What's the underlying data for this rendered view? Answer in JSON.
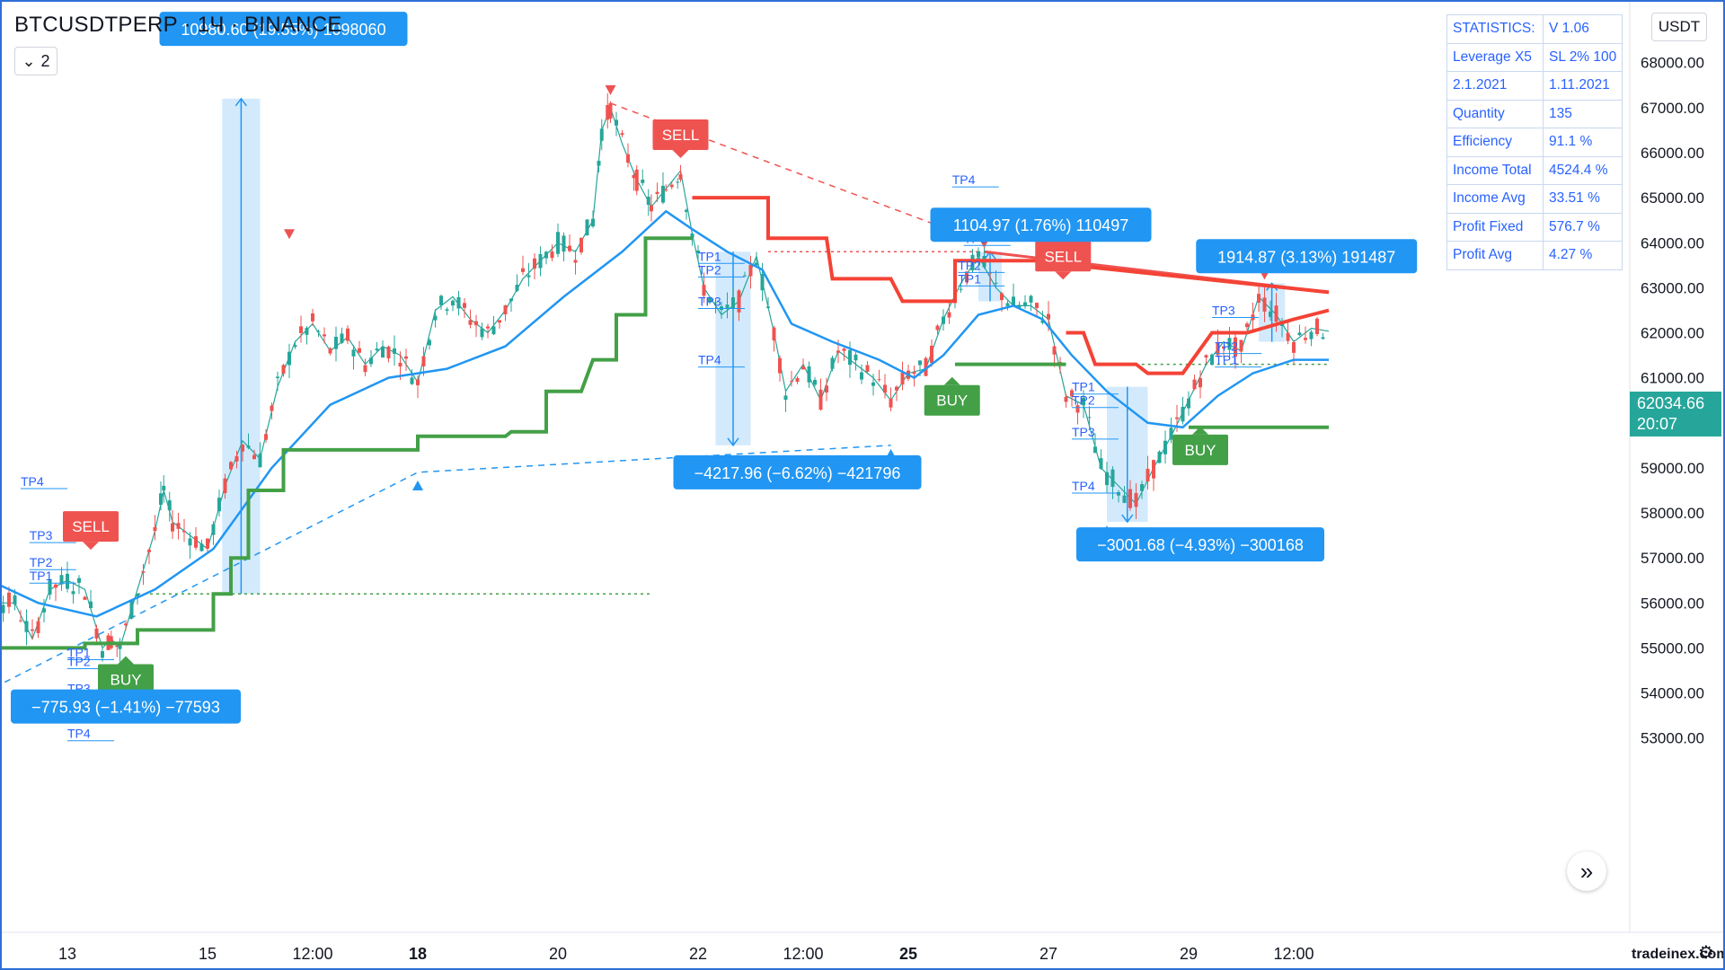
{
  "header": {
    "symbol": "BTCUSDTPERP · 1Ч · BINANCE",
    "collapse_label": "2"
  },
  "currency": "USDT",
  "stats": [
    [
      "STATISTICS:",
      "V 1.06"
    ],
    [
      "Leverage X5",
      "SL 2% 100"
    ],
    [
      "2.1.2021",
      "1.11.2021"
    ],
    [
      "Quantity",
      "135"
    ],
    [
      "Efficiency",
      "91.1 %"
    ],
    [
      "Income Total",
      "4524.4 %"
    ],
    [
      "Income Avg",
      "33.51 %"
    ],
    [
      "Profit Fixed",
      "576.7 %"
    ],
    [
      "Profit Avg",
      "4.27 %"
    ]
  ],
  "price_badge": {
    "price": "62034.66",
    "countdown": "20:07"
  },
  "watermark": "tradeinex.com",
  "colors": {
    "up": "#26a69a",
    "down": "#ef5350",
    "ma": "#2196f3",
    "stop_up": "#43a047",
    "stop_down": "#f44336",
    "label": "#2196f3"
  },
  "chart_data": {
    "type": "candlestick",
    "symbol": "BTCUSDTPERP",
    "timeframe": "1Ч",
    "exchange": "BINANCE",
    "ylim": [
      52400,
      69500
    ],
    "y_ticks": [
      53000,
      54000,
      55000,
      56000,
      57000,
      58000,
      59000,
      60000,
      61000,
      62000,
      63000,
      64000,
      65000,
      66000,
      67000,
      68000
    ],
    "y_tick_labels": [
      "53000.00",
      "54000.00",
      "55000.00",
      "56000.00",
      "57000.00",
      "58000.00",
      "59000.00",
      "60000.00",
      "61000.00",
      "62000.00",
      "63000.00",
      "64000.00",
      "65000.00",
      "66000.00",
      "67000.00",
      "68000.00"
    ],
    "x_range_hours": [
      -50,
      700
    ],
    "x_ticks": [
      {
        "hour": 0,
        "label": "13"
      },
      {
        "hour": 48,
        "label": "15"
      },
      {
        "hour": 84,
        "label": "12:00"
      },
      {
        "hour": 120,
        "label": "18",
        "bold": true
      },
      {
        "hour": 168,
        "label": "20"
      },
      {
        "hour": 216,
        "label": "22"
      },
      {
        "hour": 252,
        "label": "12:00"
      },
      {
        "hour": 288,
        "label": "25",
        "bold": true
      },
      {
        "hour": 336,
        "label": "27"
      },
      {
        "hour": 384,
        "label": "29"
      },
      {
        "hour": 420,
        "label": "12:00"
      }
    ],
    "last_price": 62034.66,
    "price_path": [
      [
        -50,
        59500
      ],
      [
        -36,
        57000
      ],
      [
        -30,
        56600
      ],
      [
        -24,
        56000
      ],
      [
        -18,
        56000
      ],
      [
        -12,
        55200
      ],
      [
        -6,
        56300
      ],
      [
        0,
        56500
      ],
      [
        6,
        56300
      ],
      [
        12,
        55000
      ],
      [
        15,
        55200
      ],
      [
        18,
        55000
      ],
      [
        24,
        56300
      ],
      [
        30,
        57600
      ],
      [
        33,
        58500
      ],
      [
        36,
        57800
      ],
      [
        42,
        57500
      ],
      [
        48,
        57200
      ],
      [
        54,
        58600
      ],
      [
        60,
        59600
      ],
      [
        66,
        59200
      ],
      [
        72,
        60800
      ],
      [
        78,
        61800
      ],
      [
        84,
        62200
      ],
      [
        90,
        61600
      ],
      [
        96,
        61900
      ],
      [
        102,
        61300
      ],
      [
        108,
        61700
      ],
      [
        114,
        61500
      ],
      [
        120,
        60900
      ],
      [
        126,
        62500
      ],
      [
        132,
        62800
      ],
      [
        138,
        62300
      ],
      [
        144,
        62000
      ],
      [
        150,
        62500
      ],
      [
        156,
        63200
      ],
      [
        162,
        63600
      ],
      [
        168,
        64000
      ],
      [
        174,
        63800
      ],
      [
        180,
        64500
      ],
      [
        183,
        66500
      ],
      [
        186,
        67000
      ],
      [
        190,
        66200
      ],
      [
        195,
        65400
      ],
      [
        200,
        64800
      ],
      [
        205,
        65200
      ],
      [
        210,
        65600
      ],
      [
        214,
        64200
      ],
      [
        218,
        63000
      ],
      [
        224,
        62400
      ],
      [
        230,
        62700
      ],
      [
        236,
        63700
      ],
      [
        242,
        62000
      ],
      [
        246,
        60700
      ],
      [
        252,
        61300
      ],
      [
        258,
        60500
      ],
      [
        264,
        61600
      ],
      [
        270,
        61300
      ],
      [
        276,
        61000
      ],
      [
        282,
        60500
      ],
      [
        288,
        61100
      ],
      [
        294,
        61200
      ],
      [
        300,
        62300
      ],
      [
        306,
        63100
      ],
      [
        312,
        63700
      ],
      [
        318,
        63000
      ],
      [
        324,
        62600
      ],
      [
        330,
        62600
      ],
      [
        336,
        62300
      ],
      [
        342,
        60600
      ],
      [
        348,
        60400
      ],
      [
        354,
        59000
      ],
      [
        360,
        58600
      ],
      [
        366,
        58200
      ],
      [
        372,
        59000
      ],
      [
        378,
        59700
      ],
      [
        384,
        60500
      ],
      [
        390,
        61300
      ],
      [
        396,
        61800
      ],
      [
        402,
        61600
      ],
      [
        408,
        62800
      ],
      [
        414,
        62400
      ],
      [
        420,
        61800
      ],
      [
        426,
        62100
      ],
      [
        432,
        62034
      ]
    ],
    "series": [
      {
        "name": "",
        "color": "#2196f3",
        "points": [
          [
            -50,
            56300
          ],
          [
            -30,
            56600
          ],
          [
            -10,
            56000
          ],
          [
            10,
            55700
          ],
          [
            30,
            56300
          ],
          [
            50,
            57200
          ],
          [
            70,
            59000
          ],
          [
            90,
            60400
          ],
          [
            110,
            61000
          ],
          [
            130,
            61200
          ],
          [
            150,
            61700
          ],
          [
            170,
            62800
          ],
          [
            190,
            63800
          ],
          [
            205,
            64700
          ],
          [
            214,
            64300
          ],
          [
            226,
            63800
          ],
          [
            238,
            63400
          ],
          [
            248,
            62200
          ],
          [
            262,
            61800
          ],
          [
            278,
            61400
          ],
          [
            290,
            61000
          ],
          [
            300,
            61500
          ],
          [
            312,
            62400
          ],
          [
            324,
            62600
          ],
          [
            334,
            62300
          ],
          [
            344,
            61500
          ],
          [
            356,
            60700
          ],
          [
            370,
            60000
          ],
          [
            382,
            59900
          ],
          [
            394,
            60600
          ],
          [
            406,
            61100
          ],
          [
            420,
            61400
          ],
          [
            432,
            61400
          ]
        ]
      },
      {
        "name": "",
        "color": "#43a047",
        "steps": [
          [
            -50,
            55000
          ],
          [
            6,
            55000
          ],
          [
            6,
            55100
          ],
          [
            24,
            55100
          ],
          [
            24,
            55400
          ],
          [
            50,
            55400
          ],
          [
            50,
            56200
          ],
          [
            56,
            56200
          ],
          [
            56,
            57000
          ],
          [
            62,
            57000
          ],
          [
            62,
            58500
          ],
          [
            74,
            58500
          ],
          [
            74,
            59400
          ],
          [
            120,
            59400
          ],
          [
            120,
            59700
          ],
          [
            150,
            59700
          ],
          [
            152,
            59800
          ],
          [
            164,
            59800
          ],
          [
            164,
            60700
          ],
          [
            176,
            60700
          ],
          [
            180,
            61400
          ],
          [
            188,
            61400
          ],
          [
            188,
            62400
          ],
          [
            198,
            62400
          ],
          [
            198,
            64100
          ],
          [
            214,
            64100
          ]
        ]
      },
      {
        "name": "",
        "color": "#f44336",
        "steps": [
          [
            214,
            65000
          ],
          [
            240,
            65000
          ],
          [
            240,
            64100
          ],
          [
            260,
            64100
          ],
          [
            262,
            63200
          ],
          [
            282,
            63200
          ],
          [
            286,
            62700
          ],
          [
            304,
            62700
          ],
          [
            304,
            63600
          ],
          [
            344,
            63600
          ],
          [
            344,
            63500
          ],
          [
            432,
            62900
          ]
        ]
      },
      {
        "name": "",
        "color": "#43a047",
        "steps": [
          [
            304,
            61300
          ],
          [
            342,
            61300
          ]
        ]
      },
      {
        "name": "",
        "color": "#f44336",
        "steps": [
          [
            342,
            62000
          ],
          [
            348,
            62000
          ],
          [
            352,
            61300
          ],
          [
            366,
            61300
          ],
          [
            370,
            61100
          ],
          [
            382,
            61100
          ],
          [
            392,
            62000
          ],
          [
            404,
            62000
          ],
          [
            420,
            62300
          ],
          [
            432,
            62500
          ]
        ]
      },
      {
        "name": "",
        "color": "#43a047",
        "steps": [
          [
            384,
            59900
          ],
          [
            432,
            59900
          ]
        ]
      }
    ],
    "signals": [
      {
        "label": "SELL",
        "hour": 8,
        "price": 57700,
        "color": "#ef5350"
      },
      {
        "label": "BUY",
        "hour": 20,
        "price": 54300,
        "color": "#43a047"
      },
      {
        "label": "SELL",
        "hour": 210,
        "price": 66400,
        "color": "#ef5350"
      },
      {
        "label": "BUY",
        "hour": 303,
        "price": 60500,
        "color": "#43a047"
      },
      {
        "label": "SELL",
        "hour": 341,
        "price": 63700,
        "color": "#ef5350"
      },
      {
        "label": "BUY",
        "hour": 388,
        "price": 59400,
        "color": "#43a047"
      }
    ],
    "measure_boxes": [
      {
        "h0": 53,
        "h1": 66,
        "p0": 56200,
        "p1": 67200,
        "label": "10980.60 (19.55%) 1098060",
        "dir": "up",
        "label_hour": 50,
        "label_price": 68750
      },
      {
        "h0": 222,
        "h1": 234,
        "p0": 59500,
        "p1": 63800,
        "label": "−4217.96 (−6.62%) −421796",
        "dir": "down",
        "label_hour": 226,
        "label_price": 58900
      },
      {
        "h0": 312,
        "h1": 320,
        "p0": 62700,
        "p1": 63800,
        "label": "1104.97 (1.76%) 110497",
        "dir": "up",
        "label_hour": 314,
        "label_price": 64400
      },
      {
        "h0": 356,
        "h1": 370,
        "p0": 57800,
        "p1": 60800,
        "label": "−3001.68 (−4.93%) −300168",
        "dir": "down",
        "label_hour": 364,
        "label_price": 57300
      },
      {
        "h0": 408,
        "h1": 417,
        "p0": 61800,
        "p1": 63100,
        "label": "1914.87 (3.13%) 191487",
        "dir": "up",
        "label_hour": 405,
        "label_price": 63700
      }
    ],
    "other_labels": [
      {
        "label": "−775.93 (−1.41%) −77593",
        "hour": -2,
        "price": 53700
      }
    ],
    "tp_labels": [
      {
        "label": "TP4",
        "hour": -16,
        "price": 58600
      },
      {
        "label": "TP3",
        "hour": -13,
        "price": 57400
      },
      {
        "label": "TP2",
        "hour": -13,
        "price": 56800
      },
      {
        "label": "TP1",
        "hour": -13,
        "price": 56500
      },
      {
        "label": "TP1",
        "hour": 0,
        "price": 54800
      },
      {
        "label": "TP2",
        "hour": 0,
        "price": 54600
      },
      {
        "label": "TP3",
        "hour": 0,
        "price": 54000
      },
      {
        "label": "TP4",
        "hour": 0,
        "price": 53000
      },
      {
        "label": "TP1",
        "hour": 216,
        "price": 63600
      },
      {
        "label": "TP2",
        "hour": 216,
        "price": 63300
      },
      {
        "label": "TP3",
        "hour": 216,
        "price": 62600
      },
      {
        "label": "TP4",
        "hour": 216,
        "price": 61300
      },
      {
        "label": "TP2",
        "hour": 305,
        "price": 63400
      },
      {
        "label": "TP1",
        "hour": 305,
        "price": 63100
      },
      {
        "label": "TP3",
        "hour": 307,
        "price": 64000
      },
      {
        "label": "TP4",
        "hour": 303,
        "price": 65300
      },
      {
        "label": "TP1",
        "hour": 344,
        "price": 60700
      },
      {
        "label": "TP2",
        "hour": 344,
        "price": 60400
      },
      {
        "label": "TP3",
        "hour": 344,
        "price": 59700
      },
      {
        "label": "TP4",
        "hour": 344,
        "price": 58500
      },
      {
        "label": "TP3",
        "hour": 392,
        "price": 62400
      },
      {
        "label": "TP2",
        "hour": 393,
        "price": 61600
      },
      {
        "label": "TP1",
        "hour": 393,
        "price": 61300
      }
    ],
    "triangles": [
      {
        "hour": 76,
        "price": 64200,
        "dir": "down",
        "color": "#ef5350"
      },
      {
        "hour": 186,
        "price": 67400,
        "dir": "down",
        "color": "#ef5350"
      },
      {
        "hour": 120,
        "price": 58600,
        "dir": "up",
        "color": "#2196f3"
      },
      {
        "hour": 282,
        "price": 59300,
        "dir": "up",
        "color": "#2196f3"
      },
      {
        "hour": 356,
        "price": 57600,
        "dir": "up",
        "color": "#2196f3"
      },
      {
        "hour": 314,
        "price": 64000,
        "dir": "down",
        "color": "#ef5350"
      },
      {
        "hour": 410,
        "price": 63300,
        "dir": "down",
        "color": "#ef5350"
      }
    ],
    "trend_lines": [
      {
        "color": "#2196f3",
        "dash": true,
        "points": [
          [
            -50,
            53300
          ],
          [
            120,
            58900
          ],
          [
            282,
            59500
          ]
        ]
      },
      {
        "color": "#ef5350",
        "dash": true,
        "points": [
          [
            186,
            67100
          ],
          [
            314,
            64000
          ]
        ]
      },
      {
        "color": "#ef5350",
        "dash": false,
        "points": [
          [
            314,
            63800
          ],
          [
            432,
            62900
          ]
        ]
      }
    ],
    "horizontal_levels": [
      {
        "price": 56200,
        "h0": 24,
        "h1": 200,
        "color": "#43a047"
      },
      {
        "price": 63800,
        "h0": 240,
        "h1": 312,
        "color": "#ef5350"
      },
      {
        "price": 61300,
        "h0": 355,
        "h1": 432,
        "color": "#43a047"
      }
    ]
  }
}
